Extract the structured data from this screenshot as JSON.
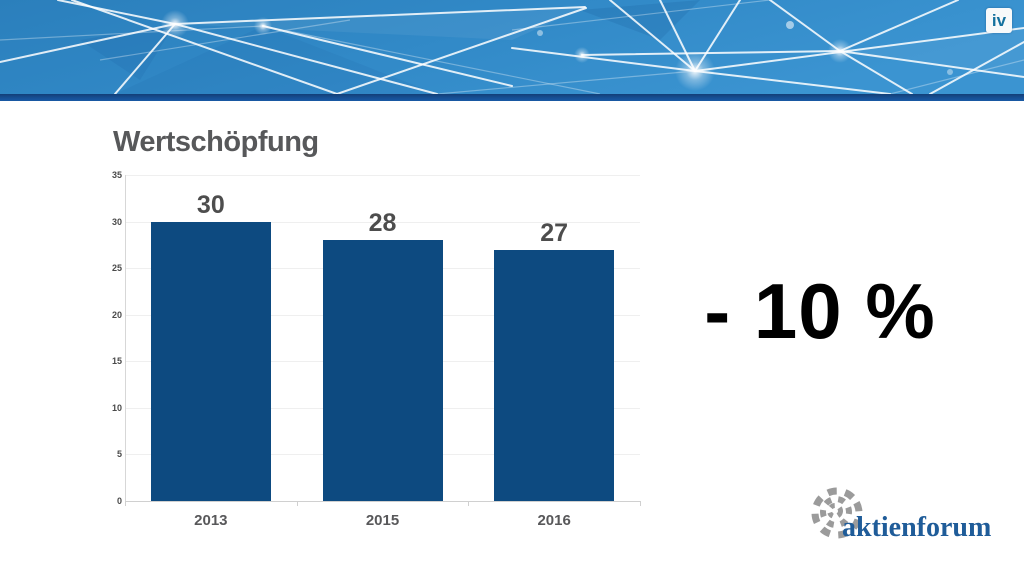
{
  "header": {
    "iv_logo_text": "iv",
    "colors": {
      "base_blue": "#2d8ac8",
      "stripe_blue": "#164f94"
    }
  },
  "slide": {
    "title": "Wertschöpfung",
    "highlight_text": "- 10 %"
  },
  "chart_data": {
    "type": "bar",
    "title": "Wertschöpfung",
    "categories": [
      "2013",
      "2015",
      "2016"
    ],
    "values": [
      30,
      28,
      27
    ],
    "bar_labels": [
      "30",
      "28",
      "27"
    ],
    "xlabel": "",
    "ylabel": "",
    "ylim": [
      0,
      35
    ],
    "yticks": [
      0,
      5,
      10,
      15,
      20,
      25,
      30,
      35
    ],
    "grid": true,
    "legend": false,
    "bar_color": "#0d4a80",
    "label_color": "#4d4d4d",
    "axis_text_color": "#4a4a4a"
  },
  "footer_logo": {
    "text": "aktienforum",
    "color": "#1f5c99",
    "icon": "spiral-dashes-icon"
  }
}
